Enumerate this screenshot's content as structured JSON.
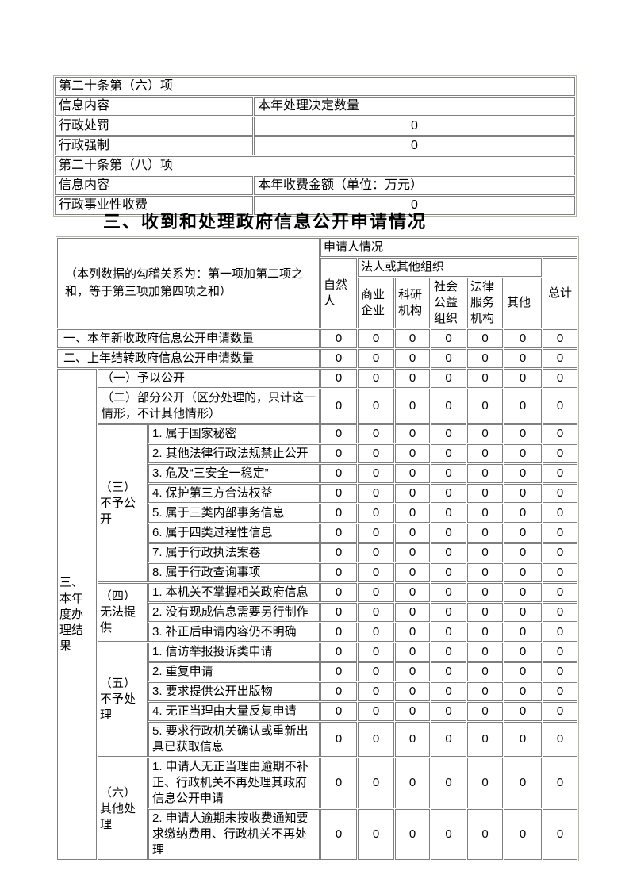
{
  "page": {
    "background": "#ffffff",
    "cell_border_color": "#7f7f7f",
    "outer_border_color": "#b6b4aa"
  },
  "top_table": {
    "rows": [
      {
        "type": "section",
        "label": "第二十条第（六）项"
      },
      {
        "type": "pair",
        "label": "信息内容",
        "value": "本年处理决定数量",
        "value_align": "left"
      },
      {
        "type": "pair",
        "label": "行政处罚",
        "value": "0",
        "value_align": "center"
      },
      {
        "type": "pair",
        "label": "行政强制",
        "value": "0",
        "value_align": "center"
      },
      {
        "type": "section",
        "label": "第二十条第（八）项"
      },
      {
        "type": "pair",
        "label": "信息内容",
        "value": "本年收费金额（单位：万元）",
        "value_align": "left"
      },
      {
        "type": "pair",
        "label": "行政事业性收费",
        "value": "0",
        "value_align": "center"
      }
    ]
  },
  "section_title": "三、收到和处理政府信息公开申请情况",
  "main_table": {
    "note": "（本列数据的勾稽关系为：第一项加第二项之和，等于第三项加第四项之和）",
    "header": {
      "applicant_group": "申请人情况",
      "natural_person": "自然人",
      "legal_group": "法人或其他组织",
      "legal_columns": [
        "商业企业",
        "科研机构",
        "社会公益组织",
        "法律服务机构",
        "其他"
      ],
      "total": "总计"
    },
    "rows": [
      {
        "cells": [
          {
            "text": "一、本年新收政府信息公开申请数量",
            "colspan": 3,
            "class": "c-rowlabel",
            "name": "row-label-new-applications"
          }
        ],
        "values": [
          "0",
          "0",
          "0",
          "0",
          "0",
          "0",
          "0"
        ]
      },
      {
        "cells": [
          {
            "text": "二、上年结转政府信息公开申请数量",
            "colspan": 3,
            "class": "c-rowlabel",
            "name": "row-label-carried-over"
          }
        ],
        "values": [
          "0",
          "0",
          "0",
          "0",
          "0",
          "0",
          "0"
        ]
      },
      {
        "cells": [
          {
            "text": "三、本年度办理结果",
            "rowspan": 20,
            "class": "c-groupA",
            "name": "group-label-results"
          },
          {
            "text": "（一）予以公开",
            "colspan": 2,
            "class": "c-sub",
            "name": "sub-label-disclosed"
          }
        ],
        "values": [
          "0",
          "0",
          "0",
          "0",
          "0",
          "0",
          "0"
        ]
      },
      {
        "cells": [
          {
            "text": "（二）部分公开（区分处理的，只计这一情形，不计其他情形）",
            "colspan": 2,
            "class": "c-sub",
            "name": "sub-label-partially-disclosed"
          }
        ],
        "values": [
          "0",
          "0",
          "0",
          "0",
          "0",
          "0",
          "0"
        ]
      },
      {
        "cells": [
          {
            "text": "（三）不予公开",
            "rowspan": 8,
            "class": "c-groupB",
            "name": "group-label-not-disclosed"
          },
          {
            "text": "1. 属于国家秘密",
            "class": "c-item",
            "name": "item-label"
          }
        ],
        "values": [
          "0",
          "0",
          "0",
          "0",
          "0",
          "0",
          "0"
        ]
      },
      {
        "cells": [
          {
            "text": "2. 其他法律行政法规禁止公开",
            "class": "c-item",
            "name": "item-label"
          }
        ],
        "values": [
          "0",
          "0",
          "0",
          "0",
          "0",
          "0",
          "0"
        ]
      },
      {
        "cells": [
          {
            "text": "3. 危及“三安全一稳定”",
            "class": "c-item",
            "name": "item-label"
          }
        ],
        "values": [
          "0",
          "0",
          "0",
          "0",
          "0",
          "0",
          "0"
        ]
      },
      {
        "cells": [
          {
            "text": "4. 保护第三方合法权益",
            "class": "c-item",
            "name": "item-label"
          }
        ],
        "values": [
          "0",
          "0",
          "0",
          "0",
          "0",
          "0",
          "0"
        ]
      },
      {
        "cells": [
          {
            "text": "5. 属于三类内部事务信息",
            "class": "c-item",
            "name": "item-label"
          }
        ],
        "values": [
          "0",
          "0",
          "0",
          "0",
          "0",
          "0",
          "0"
        ]
      },
      {
        "cells": [
          {
            "text": "6. 属于四类过程性信息",
            "class": "c-item",
            "name": "item-label"
          }
        ],
        "values": [
          "0",
          "0",
          "0",
          "0",
          "0",
          "0",
          "0"
        ]
      },
      {
        "cells": [
          {
            "text": "7. 属于行政执法案卷",
            "class": "c-item",
            "name": "item-label"
          }
        ],
        "values": [
          "0",
          "0",
          "0",
          "0",
          "0",
          "0",
          "0"
        ]
      },
      {
        "cells": [
          {
            "text": "8. 属于行政查询事项",
            "class": "c-item",
            "name": "item-label"
          }
        ],
        "values": [
          "0",
          "0",
          "0",
          "0",
          "0",
          "0",
          "0"
        ]
      },
      {
        "cells": [
          {
            "text": "（四）无法提供",
            "rowspan": 3,
            "class": "c-groupB",
            "name": "group-label-unable-to-provide"
          },
          {
            "text": "1. 本机关不掌握相关政府信息",
            "class": "c-item",
            "name": "item-label"
          }
        ],
        "values": [
          "0",
          "0",
          "0",
          "0",
          "0",
          "0",
          "0"
        ]
      },
      {
        "cells": [
          {
            "text": "2. 没有现成信息需要另行制作",
            "class": "c-item",
            "name": "item-label"
          }
        ],
        "values": [
          "0",
          "0",
          "0",
          "0",
          "0",
          "0",
          "0"
        ]
      },
      {
        "cells": [
          {
            "text": "3. 补正后申请内容仍不明确",
            "class": "c-item",
            "name": "item-label"
          }
        ],
        "values": [
          "0",
          "0",
          "0",
          "0",
          "0",
          "0",
          "0"
        ]
      },
      {
        "cells": [
          {
            "text": "（五）不予处理",
            "rowspan": 5,
            "class": "c-groupB",
            "name": "group-label-not-processed"
          },
          {
            "text": "1. 信访举报投诉类申请",
            "class": "c-item",
            "name": "item-label"
          }
        ],
        "values": [
          "0",
          "0",
          "0",
          "0",
          "0",
          "0",
          "0"
        ]
      },
      {
        "cells": [
          {
            "text": "2. 重复申请",
            "class": "c-item",
            "name": "item-label"
          }
        ],
        "values": [
          "0",
          "0",
          "0",
          "0",
          "0",
          "0",
          "0"
        ]
      },
      {
        "cells": [
          {
            "text": "3. 要求提供公开出版物",
            "class": "c-item",
            "name": "item-label"
          }
        ],
        "values": [
          "0",
          "0",
          "0",
          "0",
          "0",
          "0",
          "0"
        ]
      },
      {
        "cells": [
          {
            "text": "4. 无正当理由大量反复申请",
            "class": "c-item",
            "name": "item-label"
          }
        ],
        "values": [
          "0",
          "0",
          "0",
          "0",
          "0",
          "0",
          "0"
        ]
      },
      {
        "cells": [
          {
            "text": "5. 要求行政机关确认或重新出具已获取信息",
            "class": "c-item",
            "name": "item-label"
          }
        ],
        "values": [
          "0",
          "0",
          "0",
          "0",
          "0",
          "0",
          "0"
        ]
      },
      {
        "cells": [
          {
            "text": "（六）其他处理",
            "rowspan": 2,
            "class": "c-groupB",
            "name": "group-label-other-handling"
          },
          {
            "text": "1. 申请人无正当理由逾期不补正、行政机关不再处理其政府信息公开申请",
            "class": "c-item",
            "name": "item-label"
          }
        ],
        "values": [
          "0",
          "0",
          "0",
          "0",
          "0",
          "0",
          "0"
        ]
      },
      {
        "cells": [
          {
            "text": "2. 申请人逾期未按收费通知要求缴纳费用、行政机关不再处理",
            "class": "c-item",
            "name": "item-label"
          }
        ],
        "values": [
          "0",
          "0",
          "0",
          "0",
          "0",
          "0",
          "0"
        ]
      }
    ]
  }
}
